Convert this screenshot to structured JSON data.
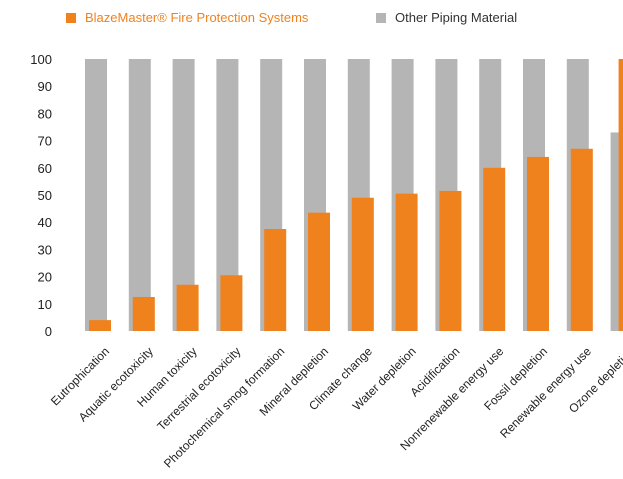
{
  "chart_data": {
    "type": "bar",
    "categories": [
      "Eutrophication",
      "Aquatic ecotoxicity",
      "Human toxicity",
      "Terrestrial ecotoxicity",
      "Photochemical smog formation",
      "Mineral depletion",
      "Climate change",
      "Water depletion",
      "Acidification",
      "Nonrenewable energy use",
      "Fossil depletion",
      "Renewable energy use",
      "Ozone depletion"
    ],
    "series": [
      {
        "name": "Other Piping Material",
        "color": "#b5b5b5",
        "values": [
          100,
          100,
          100,
          100,
          100,
          100,
          100,
          100,
          100,
          100,
          100,
          100,
          73
        ]
      },
      {
        "name": "BlazeMaster® Fire Protection Systems",
        "color": "#f0821e",
        "values": [
          4,
          12.5,
          17,
          20.5,
          37.5,
          43.5,
          49,
          50.5,
          51.5,
          60,
          64,
          67,
          100
        ]
      }
    ],
    "yticks": [
      0,
      10,
      20,
      30,
      40,
      50,
      60,
      70,
      80,
      90,
      100
    ],
    "ylim": [
      0,
      100
    ],
    "legend_position": "top",
    "grid": false
  },
  "legend": {
    "blazemaster_label": "BlazeMaster® Fire Protection Systems",
    "other_label": "Other Piping Material",
    "blazemaster_color": "#f0821e",
    "other_color": "#b5b5b5"
  }
}
